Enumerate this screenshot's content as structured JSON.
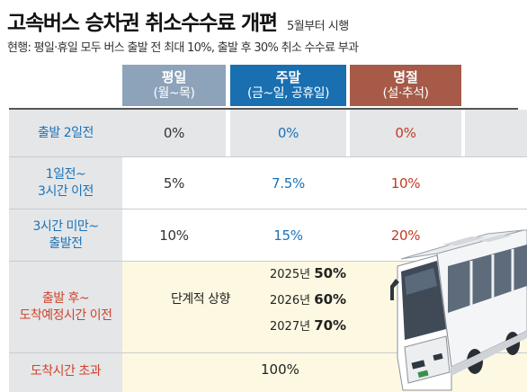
{
  "header": {
    "title": "고속버스 승차권 취소수수료 개편",
    "title_note": "5월부터 시행",
    "subtitle": "현행: 평일·휴일 모두 버스 출발 전 최대 10%, 출발 후 30% 취소 수수료 부과"
  },
  "columns": [
    {
      "title": "평일",
      "sub": "(월~목)"
    },
    {
      "title": "주말",
      "sub": "(금~일, 공휴일)"
    },
    {
      "title": "명절",
      "sub": "(설·추석)"
    }
  ],
  "rows": [
    {
      "label_lines": [
        "출발 2일전"
      ],
      "values": [
        "0%",
        "0%",
        "0%"
      ]
    },
    {
      "label_lines": [
        "1일전~",
        "3시간 이전"
      ],
      "values": [
        "5%",
        "7.5%",
        "10%"
      ]
    },
    {
      "label_lines": [
        "3시간 미만~",
        "출발전"
      ],
      "values": [
        "10%",
        "15%",
        "20%"
      ]
    }
  ],
  "after_departure": {
    "label_lines": [
      "출발 후~",
      "도착예정시간 이전"
    ],
    "phase_label": "단계적 상향",
    "phases": [
      {
        "year": "2025년",
        "rate": "50%"
      },
      {
        "year": "2026년",
        "rate": "60%"
      },
      {
        "year": "2027년",
        "rate": "70%"
      }
    ]
  },
  "after_arrival": {
    "label": "도착시간 초과",
    "value": "100%"
  },
  "colors": {
    "weekday": "#8da3ba",
    "weekend": "#1a6fb0",
    "holiday": "#a65a47",
    "label_blue": "#1b73b8",
    "label_red": "#d0432c",
    "highlight_bg": "#fdf8e2"
  },
  "illustration": "bus-icon"
}
